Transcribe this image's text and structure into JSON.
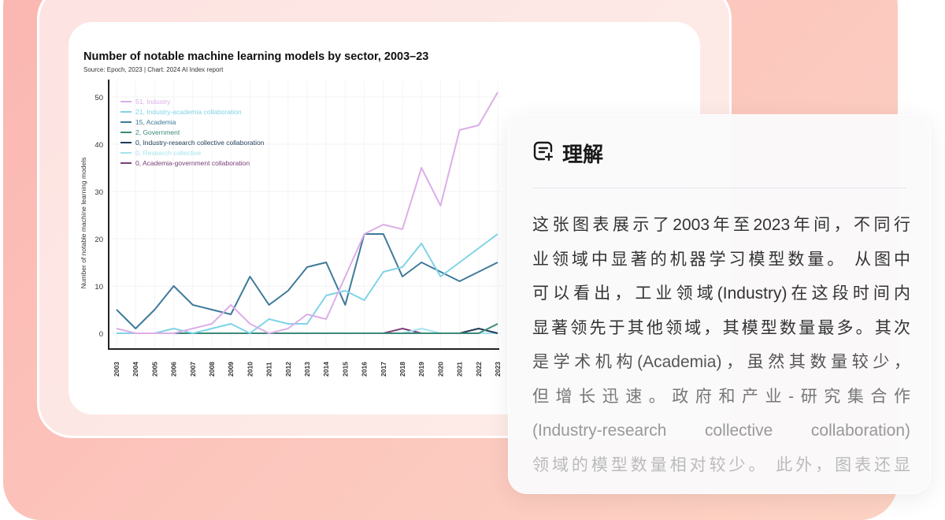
{
  "chart_data": {
    "type": "line",
    "title": "Number of notable machine learning models by sector, 2003–23",
    "subtitle": "Source: Epoch, 2023 | Chart: 2024 AI Index report",
    "xlabel": "",
    "ylabel": "Number of notable machine learning models",
    "x": [
      2003,
      2004,
      2005,
      2006,
      2007,
      2008,
      2009,
      2010,
      2011,
      2012,
      2013,
      2014,
      2015,
      2016,
      2017,
      2018,
      2019,
      2020,
      2021,
      2022,
      2023
    ],
    "ylim": [
      0,
      50
    ],
    "yticks": [
      0,
      10,
      20,
      30,
      40,
      50
    ],
    "grid": true,
    "legend": "end-of-line labels",
    "series": [
      {
        "name": "Industry",
        "end_label": "51, Industry",
        "color": "#dcaee8",
        "values": [
          1,
          0,
          0,
          0,
          1,
          2,
          6,
          2,
          0,
          1,
          4,
          3,
          12,
          21,
          23,
          22,
          35,
          27,
          43,
          44,
          51
        ]
      },
      {
        "name": "Industry-academia collaboration",
        "end_label": "21, Industry-academia collaboration",
        "color": "#7fd3e6",
        "values": [
          0,
          0,
          0,
          1,
          0,
          1,
          2,
          0,
          3,
          2,
          2,
          8,
          9,
          7,
          13,
          14,
          19,
          12,
          15,
          18,
          21
        ]
      },
      {
        "name": "Academia",
        "end_label": "15, Academia",
        "color": "#3f7a9a",
        "values": [
          5,
          1,
          5,
          10,
          6,
          5,
          4,
          12,
          6,
          9,
          14,
          15,
          6,
          21,
          21,
          12,
          15,
          13,
          11,
          13,
          15
        ]
      },
      {
        "name": "Government",
        "end_label": "2, Government",
        "color": "#3d8a7a",
        "values": [
          0,
          0,
          0,
          0,
          0,
          0,
          0,
          0,
          0,
          0,
          0,
          0,
          0,
          0,
          0,
          0,
          0,
          0,
          0,
          0,
          2
        ]
      },
      {
        "name": "Industry-research collective collaboration",
        "end_label": "0, Industry-research collective collaboration",
        "color": "#1f3d5a",
        "values": [
          0,
          0,
          0,
          0,
          0,
          0,
          0,
          0,
          0,
          0,
          0,
          0,
          0,
          0,
          0,
          0,
          0,
          0,
          0,
          1,
          0
        ]
      },
      {
        "name": "Research collective",
        "end_label": "0, Research collective",
        "color": "#a6e4ef",
        "values": [
          0,
          0,
          0,
          0,
          0,
          0,
          0,
          0,
          0,
          0,
          0,
          0,
          0,
          0,
          0,
          0,
          1,
          0,
          0,
          0,
          0
        ]
      },
      {
        "name": "Academia-government collaboration",
        "end_label": "0, Academia-government collaboration",
        "color": "#7a3f78",
        "values": [
          0,
          0,
          0,
          0,
          0,
          0,
          0,
          0,
          0,
          0,
          0,
          0,
          0,
          0,
          0,
          1,
          0,
          0,
          0,
          0,
          0
        ]
      }
    ]
  },
  "card": {
    "icon": "sparkle-note-icon",
    "title": "理解",
    "lines": [
      "这张图表展示了2003年至2023年间，不同行",
      "业领域中显著的机器学习模型数量。  从图中",
      "可以看出，工业领域(Industry)在这段时间内",
      "显著领先于其他领域，其模型数量最多。其次",
      "是学术机构(Academia)，虽然其数量较少，",
      "但增长迅速。政府和产业-研究集合作",
      "(Industry-research collective collaboration)",
      "领域的模型数量相对较少。  此外，图表还显"
    ]
  }
}
